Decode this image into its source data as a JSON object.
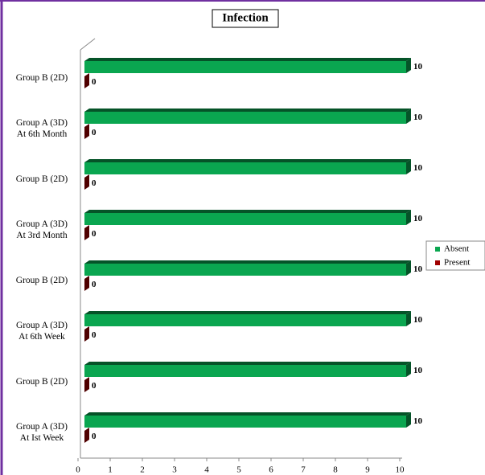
{
  "chart_data": {
    "type": "bar3d_horizontal",
    "title": "Infection",
    "categories": [
      "Group B (2D)",
      "Group A (3D)\nAt 6th Month",
      "Group B (2D)",
      "Group A (3D)\nAt 3rd Month",
      "Group B (2D)",
      "Group A (3D)\nAt 6th Week",
      "Group B (2D)",
      "Group A (3D)\nAt Ist Week"
    ],
    "series": [
      {
        "name": "Absent",
        "color": "#0aa650",
        "values": [
          10,
          10,
          10,
          10,
          10,
          10,
          10,
          10
        ]
      },
      {
        "name": "Present",
        "color": "#a00000",
        "values": [
          0,
          0,
          0,
          0,
          0,
          0,
          0,
          0
        ]
      }
    ],
    "xlim": [
      0,
      10
    ],
    "xticks": [
      0,
      1,
      2,
      3,
      4,
      5,
      6,
      7,
      8,
      9,
      10
    ],
    "legend": "right"
  }
}
